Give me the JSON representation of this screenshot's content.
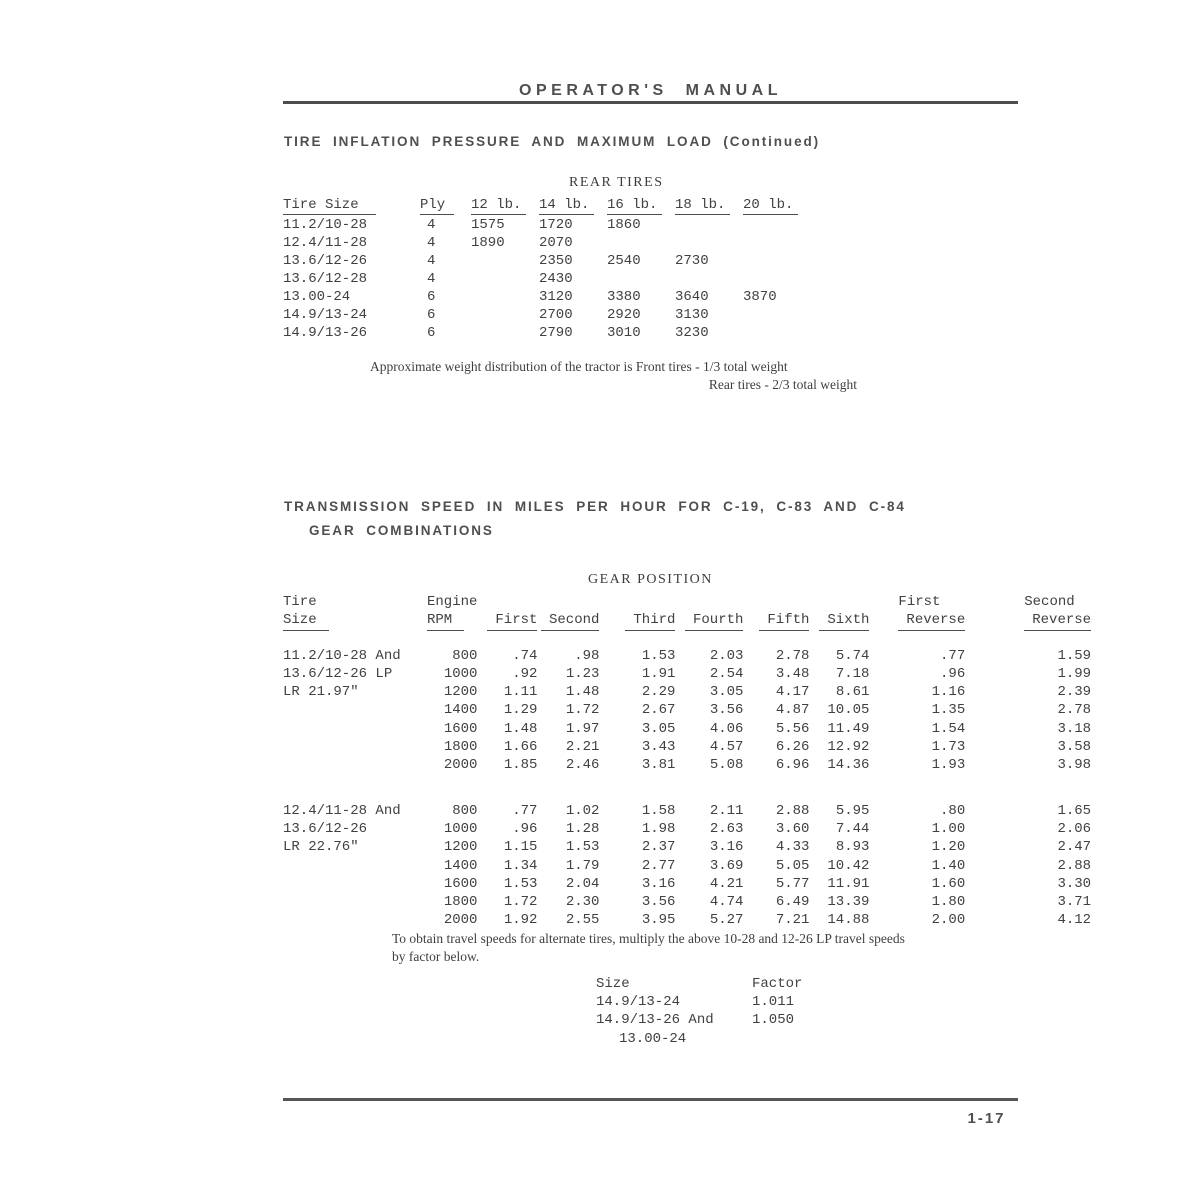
{
  "page": {
    "header_title": "OPERATOR'S MANUAL",
    "page_number": "1-17"
  },
  "tire_section": {
    "title": "TIRE INFLATION PRESSURE AND MAXIMUM LOAD (Continued)",
    "table_caption": "REAR TIRES",
    "columns": [
      "Tire Size",
      "Ply",
      "12 lb.",
      "14 lb.",
      "16 lb.",
      "18 lb.",
      "20 lb."
    ],
    "rows": [
      [
        "11.2/10-28",
        "4",
        "1575",
        "1720",
        "1860",
        "",
        ""
      ],
      [
        "12.4/11-28",
        "4",
        "1890",
        "2070",
        "",
        "",
        ""
      ],
      [
        "13.6/12-26",
        "4",
        "",
        "2350",
        "2540",
        "2730",
        ""
      ],
      [
        "13.6/12-28",
        "4",
        "",
        "2430",
        "",
        "",
        ""
      ],
      [
        "13.00-24",
        "6",
        "",
        "3120",
        "3380",
        "3640",
        "3870"
      ],
      [
        "14.9/13-24",
        "6",
        "",
        "2700",
        "2920",
        "3130",
        ""
      ],
      [
        "14.9/13-26",
        "6",
        "",
        "2790",
        "3010",
        "3230",
        ""
      ]
    ],
    "note_line1": "Approximate weight distribution of the tractor is Front tires - 1/3 total weight",
    "note_line2": "Rear tires - 2/3 total weight"
  },
  "transmission_section": {
    "title_line1": "TRANSMISSION SPEED IN MILES PER HOUR FOR C-19, C-83 AND C-84",
    "title_line2": "GEAR COMBINATIONS",
    "table_caption": "GEAR POSITION",
    "header_top": [
      "Tire",
      "Engine",
      "",
      "",
      "",
      "",
      "",
      "",
      "First",
      "Second"
    ],
    "header_bottom": [
      "Size",
      "RPM",
      "First",
      "Second",
      "Third",
      "Fourth",
      "Fifth",
      "Sixth",
      "Reverse",
      "Reverse"
    ],
    "blocks": [
      {
        "tire_lines": [
          "11.2/10-28 And",
          "13.6/12-26 LP",
          "LR 21.97\""
        ],
        "rows": [
          [
            "800",
            ".74",
            ".98",
            "1.53",
            "2.03",
            "2.78",
            "5.74",
            ".77",
            "1.59"
          ],
          [
            "1000",
            ".92",
            "1.23",
            "1.91",
            "2.54",
            "3.48",
            "7.18",
            ".96",
            "1.99"
          ],
          [
            "1200",
            "1.11",
            "1.48",
            "2.29",
            "3.05",
            "4.17",
            "8.61",
            "1.16",
            "2.39"
          ],
          [
            "1400",
            "1.29",
            "1.72",
            "2.67",
            "3.56",
            "4.87",
            "10.05",
            "1.35",
            "2.78"
          ],
          [
            "1600",
            "1.48",
            "1.97",
            "3.05",
            "4.06",
            "5.56",
            "11.49",
            "1.54",
            "3.18"
          ],
          [
            "1800",
            "1.66",
            "2.21",
            "3.43",
            "4.57",
            "6.26",
            "12.92",
            "1.73",
            "3.58"
          ],
          [
            "2000",
            "1.85",
            "2.46",
            "3.81",
            "5.08",
            "6.96",
            "14.36",
            "1.93",
            "3.98"
          ]
        ]
      },
      {
        "tire_lines": [
          "12.4/11-28 And",
          "13.6/12-26",
          "LR 22.76\""
        ],
        "rows": [
          [
            "800",
            ".77",
            "1.02",
            "1.58",
            "2.11",
            "2.88",
            "5.95",
            ".80",
            "1.65"
          ],
          [
            "1000",
            ".96",
            "1.28",
            "1.98",
            "2.63",
            "3.60",
            "7.44",
            "1.00",
            "2.06"
          ],
          [
            "1200",
            "1.15",
            "1.53",
            "2.37",
            "3.16",
            "4.33",
            "8.93",
            "1.20",
            "2.47"
          ],
          [
            "1400",
            "1.34",
            "1.79",
            "2.77",
            "3.69",
            "5.05",
            "10.42",
            "1.40",
            "2.88"
          ],
          [
            "1600",
            "1.53",
            "2.04",
            "3.16",
            "4.21",
            "5.77",
            "11.91",
            "1.60",
            "3.30"
          ],
          [
            "1800",
            "1.72",
            "2.30",
            "3.56",
            "4.74",
            "6.49",
            "13.39",
            "1.80",
            "3.71"
          ],
          [
            "2000",
            "1.92",
            "2.55",
            "3.95",
            "5.27",
            "7.21",
            "14.88",
            "2.00",
            "4.12"
          ]
        ]
      }
    ],
    "note_line1": "To obtain travel speeds for alternate tires, multiply the above 10-28 and 12-26 LP travel speeds",
    "note_line2": "by factor below.",
    "factor_table": {
      "size_header": "Size",
      "factor_header": "Factor",
      "rows": [
        {
          "size_lines": [
            "14.9/13-24"
          ],
          "factor": "1.011"
        },
        {
          "size_lines": [
            "14.9/13-26 And",
            "13.00-24"
          ],
          "factor": "1.050"
        }
      ]
    }
  }
}
